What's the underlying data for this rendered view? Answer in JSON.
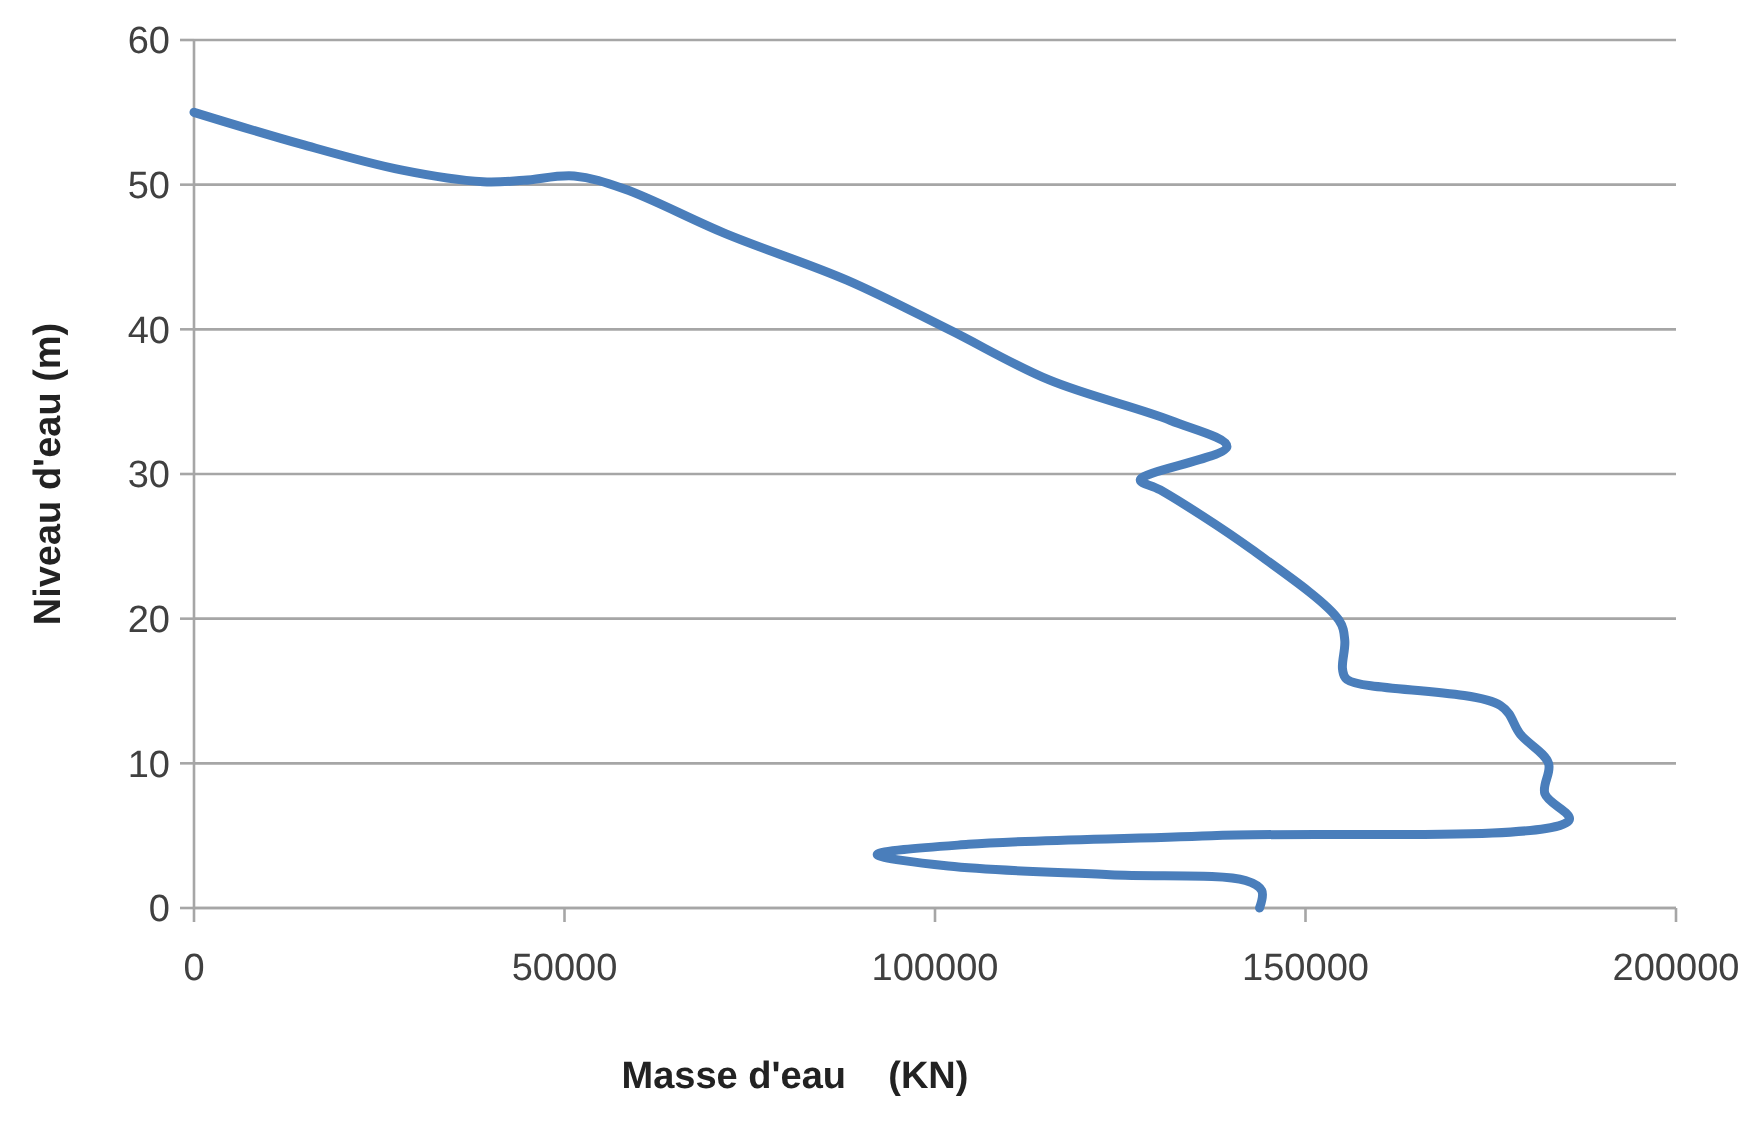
{
  "chart_data": {
    "type": "line",
    "xlabel": "Masse d'eau    (KN)",
    "ylabel": "Niveau d'eau (m)",
    "xlim": [
      0,
      200000
    ],
    "xticks": [
      0,
      50000,
      100000,
      150000,
      200000
    ],
    "ylim": [
      0,
      60
    ],
    "yticks": [
      0,
      10,
      20,
      30,
      40,
      50,
      60
    ],
    "grid": "y",
    "series": [
      {
        "color": "#4a7ebb",
        "x": [
          143800,
          144100,
          141900,
          123600,
          101800,
          92200,
          104500,
          137300,
          185600,
          182300,
          182800,
          179000,
          176300,
          155600,
          155000,
          155300,
          154500,
          142700,
          130400,
          127700,
          139400,
          131800,
          115400,
          101800,
          88100,
          71800,
          58100,
          51300,
          44500,
          39000,
          28100,
          14460,
          0
        ],
        "values": [
          0,
          1.2,
          1.9,
          2.3,
          2.9,
          3.7,
          4.4,
          5.0,
          6.1,
          7.9,
          10.0,
          12.0,
          14.0,
          15.8,
          16.5,
          18.5,
          19.9,
          24.8,
          28.9,
          29.6,
          31.9,
          33.7,
          36.5,
          40.0,
          43.4,
          46.6,
          49.7,
          50.6,
          50.3,
          50.2,
          51.0,
          52.8,
          55
        ]
      }
    ]
  }
}
